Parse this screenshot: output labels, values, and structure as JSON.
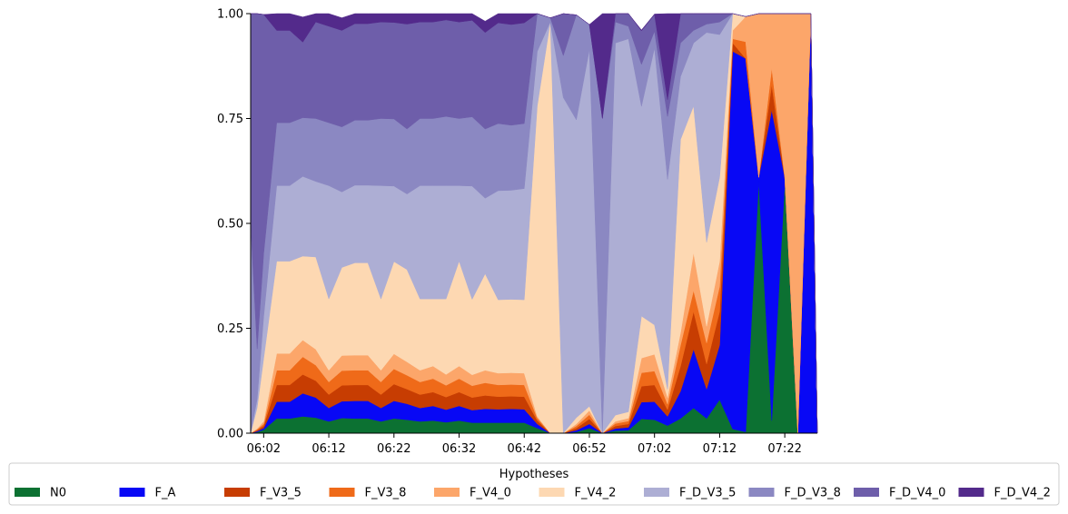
{
  "chart_data": {
    "type": "area",
    "stacked": true,
    "normalized": true,
    "title": "",
    "xlabel": "",
    "ylabel": "",
    "ylim": [
      0,
      1
    ],
    "y_ticks": [
      "0.00",
      "0.25",
      "0.50",
      "0.75",
      "1.00"
    ],
    "y_tick_values": [
      0,
      0.25,
      0.5,
      0.75,
      1.0
    ],
    "x_range": [
      "06:00",
      "07:27"
    ],
    "x_ticks": [
      "06:02",
      "06:12",
      "06:22",
      "06:32",
      "06:42",
      "06:52",
      "07:02",
      "07:12",
      "07:22"
    ],
    "x": [
      "06:00",
      "06:01",
      "06:02",
      "06:04",
      "06:06",
      "06:08",
      "06:10",
      "06:12",
      "06:14",
      "06:16",
      "06:18",
      "06:20",
      "06:22",
      "06:24",
      "06:26",
      "06:28",
      "06:30",
      "06:32",
      "06:34",
      "06:36",
      "06:38",
      "06:40",
      "06:42",
      "06:44",
      "06:46",
      "06:48",
      "06:50",
      "06:52",
      "06:54",
      "06:56",
      "06:58",
      "07:00",
      "07:02",
      "07:04",
      "07:06",
      "07:08",
      "07:10",
      "07:12",
      "07:14",
      "07:16",
      "07:18",
      "07:20",
      "07:22",
      "07:24",
      "07:26",
      "07:27"
    ],
    "legend": {
      "title": "Hypotheses",
      "placement": "bottom",
      "columns": 10
    },
    "series": [
      {
        "name": "N0",
        "color": "#0c7132",
        "values": [
          0.0,
          0.003,
          0.008,
          0.035,
          0.035,
          0.04,
          0.037,
          0.028,
          0.036,
          0.035,
          0.035,
          0.028,
          0.035,
          0.032,
          0.028,
          0.03,
          0.026,
          0.03,
          0.025,
          0.025,
          0.025,
          0.025,
          0.025,
          0.012,
          0.0,
          0.0,
          0.003,
          0.012,
          0.0,
          0.006,
          0.007,
          0.034,
          0.032,
          0.018,
          0.035,
          0.06,
          0.035,
          0.08,
          0.01,
          0.003,
          0.6,
          0.03,
          0.6,
          0.0,
          0.0,
          0.0
        ]
      },
      {
        "name": "F_A",
        "color": "#0808f5",
        "values": [
          0.0,
          0.002,
          0.004,
          0.04,
          0.04,
          0.055,
          0.048,
          0.032,
          0.04,
          0.042,
          0.042,
          0.032,
          0.042,
          0.038,
          0.032,
          0.035,
          0.03,
          0.035,
          0.03,
          0.033,
          0.032,
          0.033,
          0.032,
          0.01,
          0.0,
          0.0,
          0.004,
          0.01,
          0.0,
          0.005,
          0.007,
          0.04,
          0.043,
          0.022,
          0.065,
          0.14,
          0.07,
          0.13,
          0.9,
          0.89,
          0.01,
          0.74,
          0.01,
          0.0,
          1.0,
          0.0
        ]
      },
      {
        "name": "F_V3_5",
        "color": "#c73d02",
        "values": [
          0.0,
          0.002,
          0.005,
          0.04,
          0.04,
          0.045,
          0.04,
          0.032,
          0.038,
          0.038,
          0.038,
          0.032,
          0.04,
          0.035,
          0.032,
          0.033,
          0.03,
          0.033,
          0.03,
          0.032,
          0.03,
          0.03,
          0.03,
          0.008,
          0.0,
          0.0,
          0.005,
          0.012,
          0.0,
          0.006,
          0.008,
          0.038,
          0.04,
          0.016,
          0.06,
          0.09,
          0.06,
          0.08,
          0.02,
          0.0,
          0.0,
          0.06,
          0.0,
          0.0,
          0.0,
          0.0
        ]
      },
      {
        "name": "F_V3_8",
        "color": "#ef6a19",
        "values": [
          0.0,
          0.002,
          0.005,
          0.035,
          0.035,
          0.042,
          0.037,
          0.03,
          0.035,
          0.035,
          0.035,
          0.03,
          0.036,
          0.033,
          0.03,
          0.032,
          0.028,
          0.032,
          0.028,
          0.03,
          0.028,
          0.028,
          0.028,
          0.006,
          0.0,
          0.0,
          0.005,
          0.01,
          0.0,
          0.006,
          0.007,
          0.032,
          0.033,
          0.013,
          0.05,
          0.05,
          0.05,
          0.06,
          0.01,
          0.04,
          0.0,
          0.04,
          0.0,
          0.0,
          0.0,
          0.0
        ]
      },
      {
        "name": "F_V4_0",
        "color": "#fca66a",
        "values": [
          0.0,
          0.002,
          0.006,
          0.04,
          0.04,
          0.04,
          0.038,
          0.028,
          0.036,
          0.036,
          0.036,
          0.028,
          0.036,
          0.032,
          0.028,
          0.03,
          0.026,
          0.03,
          0.026,
          0.03,
          0.028,
          0.028,
          0.028,
          0.004,
          0.0,
          0.0,
          0.005,
          0.01,
          0.0,
          0.005,
          0.007,
          0.035,
          0.04,
          0.016,
          0.03,
          0.09,
          0.04,
          0.06,
          0.02,
          0.06,
          0.4,
          0.13,
          0.4,
          1.0,
          0.0,
          0.0
        ]
      },
      {
        "name": "F_V4_2",
        "color": "#fdd8b2",
        "values": [
          0.0,
          0.05,
          0.15,
          0.22,
          0.22,
          0.2,
          0.22,
          0.17,
          0.21,
          0.22,
          0.22,
          0.17,
          0.22,
          0.22,
          0.17,
          0.16,
          0.18,
          0.25,
          0.18,
          0.23,
          0.175,
          0.175,
          0.175,
          0.74,
          0.98,
          0.0,
          0.015,
          0.01,
          0.0,
          0.015,
          0.015,
          0.1,
          0.07,
          0.02,
          0.46,
          0.35,
          0.2,
          0.2,
          0.04,
          0.0,
          0.0,
          0.0,
          0.0,
          0.0,
          0.0,
          0.0
        ]
      },
      {
        "name": "F_D_V3_5",
        "color": "#adaed4",
        "values": [
          0.0,
          0.02,
          0.1,
          0.18,
          0.18,
          0.19,
          0.18,
          0.27,
          0.18,
          0.185,
          0.185,
          0.27,
          0.18,
          0.18,
          0.27,
          0.27,
          0.27,
          0.18,
          0.27,
          0.18,
          0.26,
          0.26,
          0.265,
          0.13,
          0.0,
          0.8,
          0.71,
          0.85,
          0.0,
          0.887,
          0.889,
          0.5,
          0.66,
          0.5,
          0.15,
          0.15,
          0.5,
          0.34,
          0.0,
          0.0,
          0.0,
          0.0,
          0.0,
          0.0,
          0.0,
          0.0
        ]
      },
      {
        "name": "F_D_V3_8",
        "color": "#8b88c2",
        "values": [
          0.5,
          0.12,
          0.15,
          0.15,
          0.15,
          0.14,
          0.15,
          0.15,
          0.155,
          0.155,
          0.155,
          0.16,
          0.16,
          0.155,
          0.16,
          0.16,
          0.165,
          0.16,
          0.165,
          0.165,
          0.16,
          0.155,
          0.155,
          0.09,
          0.01,
          0.1,
          0.25,
          0.06,
          0.75,
          0.05,
          0.03,
          0.1,
          0.04,
          0.15,
          0.08,
          0.03,
          0.02,
          0.03,
          0.0,
          0.0,
          0.0,
          0.0,
          0.0,
          0.0,
          0.0,
          0.0
        ]
      },
      {
        "name": "F_D_V4_0",
        "color": "#6e5eaa",
        "values": [
          0.5,
          0.799,
          0.57,
          0.22,
          0.22,
          0.18,
          0.23,
          0.23,
          0.23,
          0.23,
          0.23,
          0.23,
          0.23,
          0.25,
          0.23,
          0.23,
          0.23,
          0.23,
          0.23,
          0.23,
          0.24,
          0.24,
          0.24,
          0.0,
          0.0,
          0.1,
          0.0,
          0.0,
          0.0,
          0.02,
          0.03,
          0.08,
          0.04,
          0.04,
          0.07,
          0.05,
          0.025,
          0.02,
          0.0,
          0.0,
          0.0,
          0.0,
          0.0,
          0.0,
          0.0,
          0.0
        ]
      },
      {
        "name": "F_D_V4_2",
        "color": "#532a8b",
        "values": [
          0.0,
          0.0,
          0.0,
          0.04,
          0.04,
          0.06,
          0.03,
          0.03,
          0.03,
          0.027,
          0.027,
          0.03,
          0.028,
          0.028,
          0.03,
          0.027,
          0.03,
          0.027,
          0.03,
          0.027,
          0.032,
          0.026,
          0.032,
          0.0,
          0.0,
          0.0,
          0.0,
          0.0,
          0.25,
          0.0,
          0.0,
          0.002,
          0.001,
          0.205,
          0.0,
          0.0,
          0.0,
          0.0,
          0.0,
          0.0,
          0.0,
          0.0,
          0.0,
          0.0,
          0.0,
          0.0
        ]
      }
    ]
  }
}
